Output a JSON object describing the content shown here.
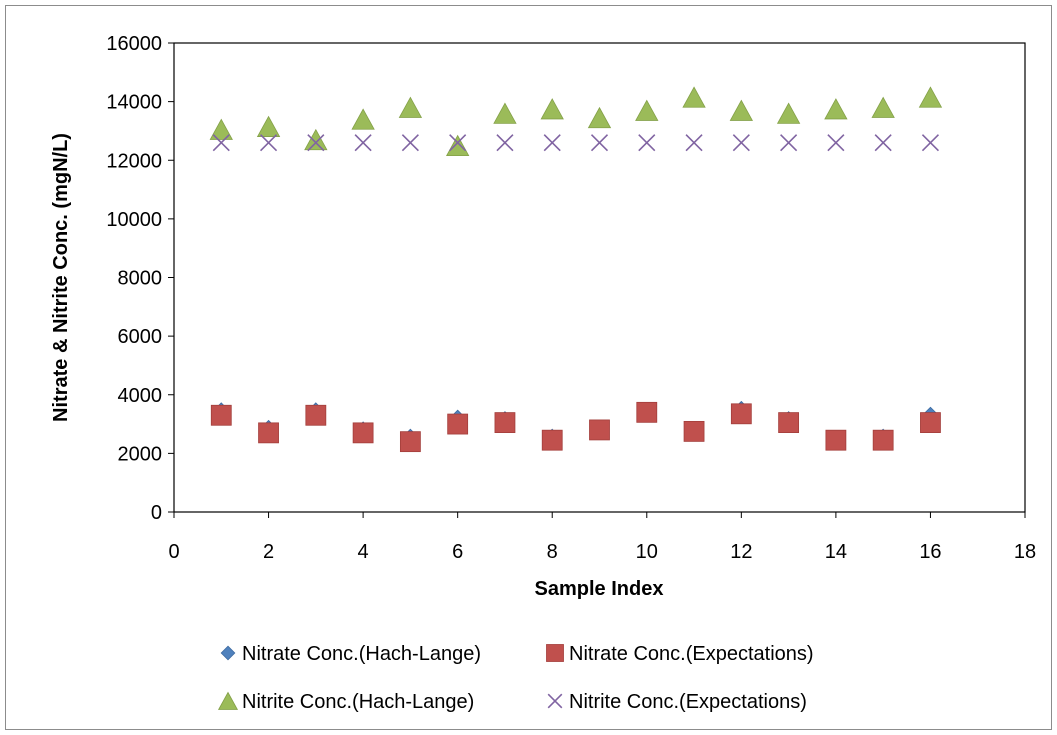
{
  "chart_data": {
    "type": "scatter",
    "title": "",
    "xlabel": "Sample Index",
    "ylabel": "Nitrate & Nitrite Conc. (mgN/L)",
    "xlim": [
      0,
      18
    ],
    "ylim": [
      0,
      16000
    ],
    "xticks": [
      0,
      2,
      4,
      6,
      8,
      10,
      12,
      14,
      16,
      18
    ],
    "yticks": [
      0,
      2000,
      4000,
      6000,
      8000,
      10000,
      12000,
      14000,
      16000
    ],
    "x": [
      1,
      2,
      3,
      4,
      5,
      6,
      7,
      8,
      9,
      10,
      11,
      12,
      13,
      14,
      15,
      16
    ],
    "grid": false,
    "legend_position": "bottom",
    "series": [
      {
        "name": "Nitrate Conc.(Hach-Lange)",
        "marker": "diamond",
        "color": "#4f81bd",
        "values": [
          3450,
          2850,
          3450,
          2800,
          2550,
          3200,
          3150,
          2550,
          2800,
          3400,
          2800,
          3500,
          3150,
          2500,
          2550,
          3300
        ]
      },
      {
        "name": "Nitrate Conc.(Expectations)",
        "marker": "square",
        "color": "#c0504d",
        "values": [
          3300,
          2700,
          3300,
          2700,
          2400,
          3000,
          3050,
          2450,
          2800,
          3400,
          2750,
          3350,
          3050,
          2450,
          2450,
          3050
        ]
      },
      {
        "name": "Nitrite Conc.(Hach-Lange)",
        "marker": "triangle",
        "color": "#9bbb59",
        "values": [
          13050,
          13150,
          12700,
          13400,
          13800,
          12500,
          13600,
          13750,
          13450,
          13700,
          14150,
          13700,
          13600,
          13750,
          13800,
          14150
        ]
      },
      {
        "name": "Nitrite Conc.(Expectations)",
        "marker": "x",
        "color": "#8064a2",
        "values": [
          12600,
          12600,
          12600,
          12600,
          12600,
          12600,
          12600,
          12600,
          12600,
          12600,
          12600,
          12600,
          12600,
          12600,
          12600,
          12600
        ]
      }
    ]
  }
}
